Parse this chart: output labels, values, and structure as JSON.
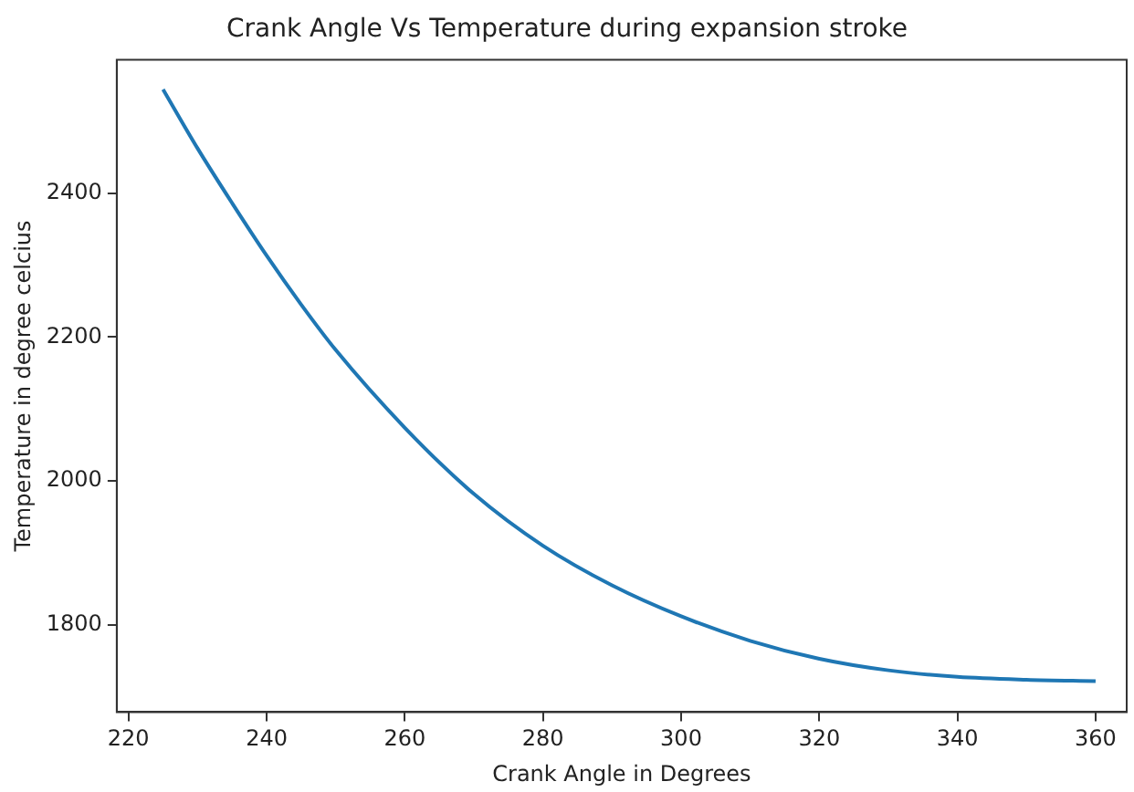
{
  "chart_data": {
    "type": "line",
    "title": "Crank Angle Vs Temperature during expansion stroke",
    "xlabel": "Crank Angle in Degrees",
    "ylabel": "Temperature in degree celcius",
    "x": [
      225,
      230,
      235,
      240,
      245,
      250,
      260,
      270,
      280,
      290,
      300,
      310,
      320,
      330,
      340,
      350,
      360
    ],
    "series": [
      {
        "color": "#1f77b4",
        "values": [
          2544,
          2462,
          2386,
          2313,
          2245,
          2182,
          2074,
          1982,
          1910,
          1855,
          1812,
          1778,
          1753,
          1737,
          1728,
          1724,
          1722
        ]
      }
    ],
    "xlim": [
      218.3,
      364.5
    ],
    "ylim": [
      1679,
      2585
    ],
    "xticks": [
      220,
      240,
      260,
      280,
      300,
      320,
      340,
      360
    ],
    "yticks": [
      1800,
      2000,
      2200,
      2400
    ],
    "grid": false,
    "legend": false,
    "marker": "none",
    "line_style": "solid"
  }
}
